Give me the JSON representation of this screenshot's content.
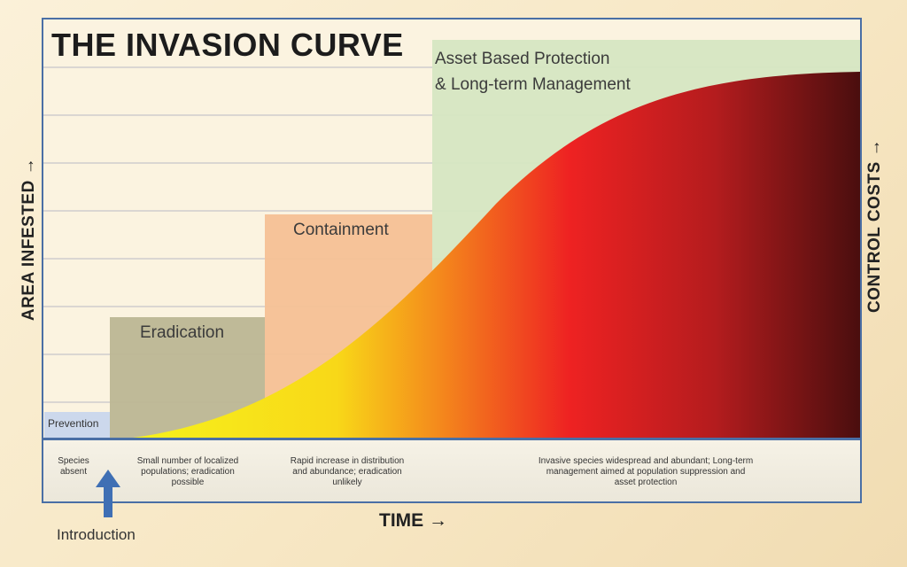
{
  "title": "THE INVASION CURVE",
  "y_left_label": "AREA INFESTED →",
  "y_right_label": "CONTROL COSTS →",
  "x_label": "TIME →",
  "introduction_label": "Introduction",
  "stages": {
    "prevention": "Prevention",
    "eradication": "Eradication",
    "containment": "Containment",
    "asset_line1": "Asset Based Protection",
    "asset_line2": "& Long-term Management"
  },
  "descriptions": {
    "species_absent": [
      "Species",
      "absent"
    ],
    "eradication": [
      "Small number of localized",
      "populations; eradication",
      "possible"
    ],
    "containment": [
      "Rapid increase in distribution",
      "and abundance; eradication",
      "unlikely"
    ],
    "asset": [
      "Invasive species widespread and abundant; Long-term",
      "management aimed at population suppression and",
      "asset protection"
    ]
  },
  "colors": {
    "prevention": "#c9d6ec",
    "eradication": "#bcb693",
    "containment": "#f6c095",
    "asset": "#d6e6c2",
    "curve_start": "#f3ee1a",
    "curve_mid": "#ef2020",
    "curve_end": "#4a0e0e",
    "frame": "#4a6fa5",
    "arrow": "#3f6fb4"
  }
}
